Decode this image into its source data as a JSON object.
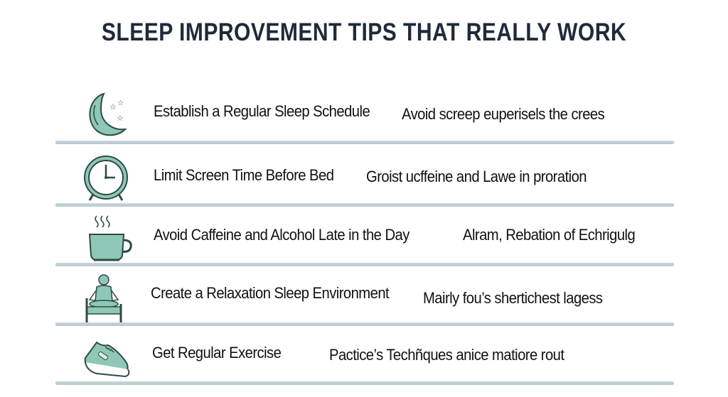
{
  "title": "SLEEP IMPROVEMENT TIPS THAT REALLY WORK",
  "colors": {
    "title": "#1f2a3a",
    "icon_fill": "#8fc8b6",
    "icon_stroke": "#2d4a47",
    "divider": "#c0cfd6"
  },
  "tips": [
    {
      "icon": "moon-stars-icon",
      "title": "Establish a Regular Sleep Schedule",
      "detail": "Avoid screep euperisels the crees"
    },
    {
      "icon": "alarm-clock-icon",
      "title": "Limit Screen Time Before Bed",
      "detail": "Groist ucffeine and Lawe in proration"
    },
    {
      "icon": "coffee-cup-icon",
      "title": "Avoid Caffeine and Alcohol Late in  the Day",
      "detail": "Alram, Rebation of Echrigulg"
    },
    {
      "icon": "meditation-bed-icon",
      "title": "Create a Relaxation Sleep Environment",
      "detail": "Mairly fou’s shertichest lagess"
    },
    {
      "icon": "sneaker-icon",
      "title": "Get Regular Exercise",
      "detail": "Pactice’s Techñques anice matiore rout"
    }
  ]
}
